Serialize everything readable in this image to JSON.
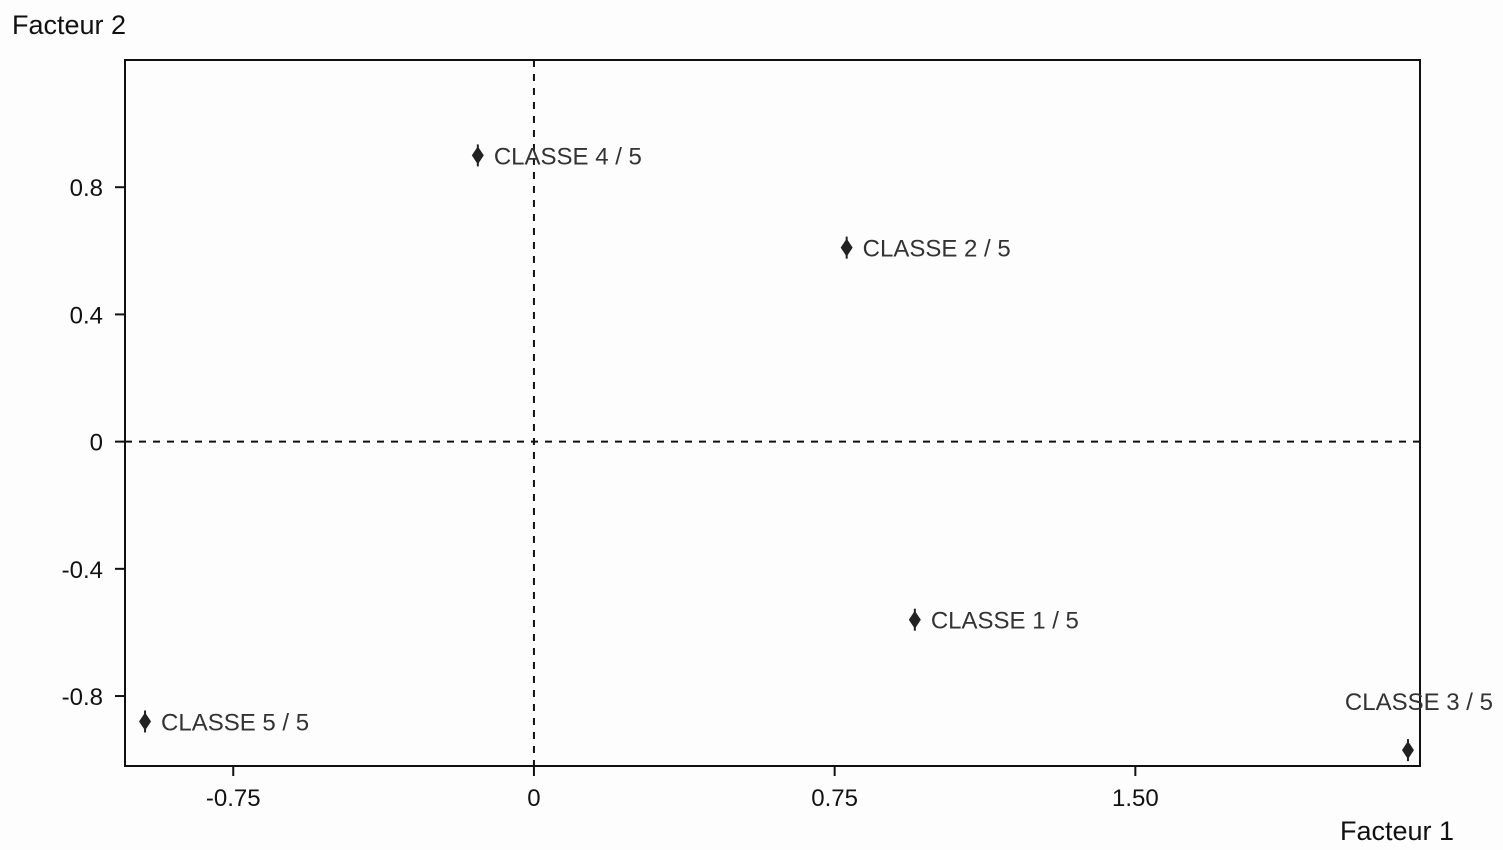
{
  "chart_data": {
    "type": "scatter",
    "title": "",
    "xlabel": "Facteur 1",
    "ylabel": "Facteur 2",
    "xlim": [
      -1.02,
      2.21
    ],
    "ylim": [
      -1.02,
      1.2
    ],
    "xticks": [
      -0.75,
      0,
      0.75,
      1.5
    ],
    "xtick_labels": [
      "-0.75",
      "0",
      "0.75",
      "1.50"
    ],
    "yticks": [
      0.8,
      0.4,
      0,
      -0.4,
      -0.8
    ],
    "ytick_labels": [
      "0.8",
      "0.4",
      "0",
      "-0.4",
      "-0.8"
    ],
    "grid": false,
    "reference_lines": {
      "x": 0,
      "y": 0,
      "style": "dashed"
    },
    "points": [
      {
        "label": "CLASSE  4 / 5",
        "x": -0.14,
        "y": 0.9
      },
      {
        "label": "CLASSE  2 / 5",
        "x": 0.78,
        "y": 0.61
      },
      {
        "label": "CLASSE  1 / 5",
        "x": 0.95,
        "y": -0.56
      },
      {
        "label": "CLASSE  5 / 5",
        "x": -0.97,
        "y": -0.88
      },
      {
        "label": "CLASSE  3 / 5",
        "x": 2.18,
        "y": -0.97,
        "label_position": "above-left"
      }
    ],
    "marker_color": "#222222",
    "axis_color": "#111111"
  }
}
